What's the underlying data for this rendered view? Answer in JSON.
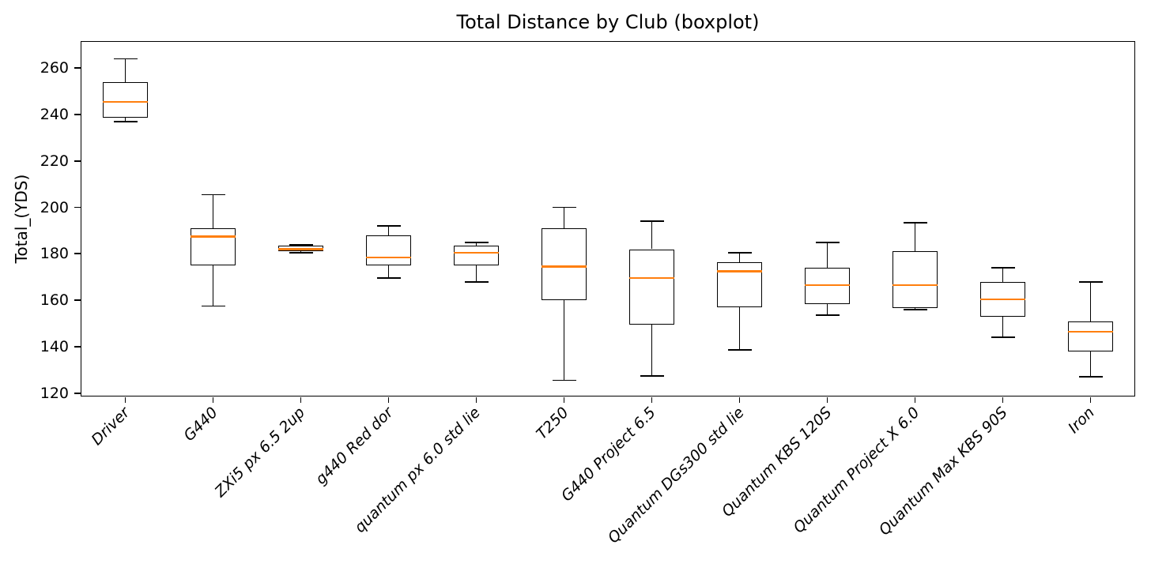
{
  "figure": {
    "background": "#ffffff"
  },
  "chart_data": {
    "type": "boxplot",
    "title": "Total Distance by Club (boxplot)",
    "ylabel": "Total_(YDS)",
    "xlabel": "",
    "ylim": [
      118.9,
      271.3
    ],
    "yticks": [
      120,
      140,
      160,
      180,
      200,
      220,
      240,
      260
    ],
    "grid": false,
    "legend_position": "none",
    "colors": {
      "median": "#ff7f0e",
      "line": "#000000",
      "background": "#ffffff"
    },
    "categories": [
      "Driver",
      "G440",
      "ZXi5 px 6.5 2up",
      "g440 Red dor",
      "quantum px 6.0 std lie",
      "T250",
      "G440 Project 6.5",
      "Quantum DGs300 std lie",
      "Quantum KBS 120S",
      "Quantum Project X 6.0",
      "Quantum Max KBS 90S",
      "Iron"
    ],
    "series": [
      {
        "name": "Driver",
        "whislo": 237,
        "q1": 238.5,
        "med": 245.5,
        "q3": 254,
        "whishi": 264
      },
      {
        "name": "G440",
        "whislo": 157.5,
        "q1": 175,
        "med": 187.5,
        "q3": 191,
        "whishi": 205.5
      },
      {
        "name": "ZXi5 px 6.5 2up",
        "whislo": 180.5,
        "q1": 181,
        "med": 182,
        "q3": 183.5,
        "whishi": 184
      },
      {
        "name": "g440 Red dor",
        "whislo": 169.5,
        "q1": 175,
        "med": 178.5,
        "q3": 188,
        "whishi": 192
      },
      {
        "name": "quantum px 6.0 std lie",
        "whislo": 168,
        "q1": 175,
        "med": 180.5,
        "q3": 183.5,
        "whishi": 185
      },
      {
        "name": "T250",
        "whislo": 125.5,
        "q1": 160,
        "med": 174.5,
        "q3": 191,
        "whishi": 200
      },
      {
        "name": "G440 Project 6.5",
        "whislo": 127.5,
        "q1": 149.5,
        "med": 169.5,
        "q3": 182,
        "whishi": 194
      },
      {
        "name": "Quantum DGs300 std lie",
        "whislo": 138.5,
        "q1": 157,
        "med": 172.5,
        "q3": 176.5,
        "whishi": 180.5
      },
      {
        "name": "Quantum KBS 120S",
        "whislo": 153.5,
        "q1": 158.5,
        "med": 166.5,
        "q3": 174,
        "whishi": 185
      },
      {
        "name": "Quantum Project X 6.0",
        "whislo": 156,
        "q1": 156.5,
        "med": 166.5,
        "q3": 181,
        "whishi": 193.5
      },
      {
        "name": "Quantum Max KBS 90S",
        "whislo": 144,
        "q1": 153,
        "med": 160.5,
        "q3": 168,
        "whishi": 174
      },
      {
        "name": "Iron",
        "whislo": 127,
        "q1": 138,
        "med": 146.5,
        "q3": 151,
        "whishi": 168
      }
    ]
  }
}
